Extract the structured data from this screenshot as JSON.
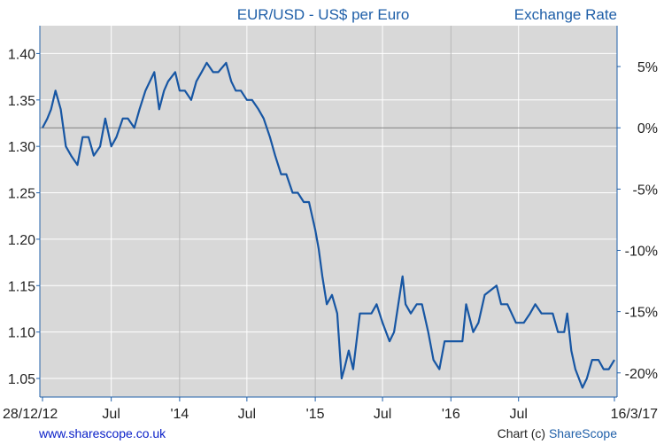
{
  "chart_data": {
    "type": "line",
    "title": "EUR/USD - US$ per Euro",
    "right_title": "Exchange Rate",
    "x_ticks": [
      "28/12/12",
      "Jul",
      "'14",
      "Jul",
      "'15",
      "Jul",
      "'16",
      "Jul",
      "16/3/17"
    ],
    "y_ticks_left": [
      "1.40",
      "1.35",
      "1.30",
      "1.25",
      "1.20",
      "1.15",
      "1.10",
      "1.05"
    ],
    "y_ticks_right": [
      "5%",
      "0%",
      "-5%",
      "-10%",
      "-15%",
      "-20%"
    ],
    "ylim": [
      1.03,
      1.43
    ],
    "baseline": 1.32,
    "grid": true,
    "colors": {
      "line": "#1756a3",
      "plot_bg": "#d8d8d8",
      "grid": "#ffffff",
      "baseline": "#808080",
      "axis": "#1f5fa8"
    },
    "series": [
      {
        "name": "",
        "x": [
          "2012-12-28",
          "2013-01-10",
          "2013-01-20",
          "2013-02-01",
          "2013-02-15",
          "2013-03-01",
          "2013-03-15",
          "2013-04-01",
          "2013-04-15",
          "2013-05-01",
          "2013-05-15",
          "2013-06-01",
          "2013-06-15",
          "2013-07-01",
          "2013-07-15",
          "2013-08-01",
          "2013-08-15",
          "2013-09-01",
          "2013-09-15",
          "2013-10-01",
          "2013-10-25",
          "2013-11-07",
          "2013-11-20",
          "2013-12-01",
          "2013-12-20",
          "2014-01-01",
          "2014-01-15",
          "2014-02-01",
          "2014-02-15",
          "2014-03-01",
          "2014-03-15",
          "2014-04-01",
          "2014-04-15",
          "2014-05-06",
          "2014-05-20",
          "2014-06-01",
          "2014-06-15",
          "2014-07-01",
          "2014-07-15",
          "2014-08-01",
          "2014-08-15",
          "2014-09-01",
          "2014-09-15",
          "2014-10-01",
          "2014-10-15",
          "2014-11-01",
          "2014-11-15",
          "2014-12-01",
          "2014-12-15",
          "2015-01-01",
          "2015-01-10",
          "2015-01-20",
          "2015-02-01",
          "2015-02-15",
          "2015-03-01",
          "2015-03-13",
          "2015-03-20",
          "2015-04-01",
          "2015-04-13",
          "2015-05-01",
          "2015-05-15",
          "2015-06-01",
          "2015-06-15",
          "2015-07-01",
          "2015-07-20",
          "2015-08-01",
          "2015-08-24",
          "2015-09-01",
          "2015-09-15",
          "2015-10-01",
          "2015-10-15",
          "2015-11-01",
          "2015-11-15",
          "2015-12-01",
          "2015-12-15",
          "2016-01-01",
          "2016-01-15",
          "2016-02-01",
          "2016-02-11",
          "2016-03-01",
          "2016-03-15",
          "2016-04-01",
          "2016-05-03",
          "2016-05-15",
          "2016-06-01",
          "2016-06-24",
          "2016-07-15",
          "2016-08-01",
          "2016-08-15",
          "2016-09-01",
          "2016-09-15",
          "2016-10-01",
          "2016-10-15",
          "2016-11-01",
          "2016-11-09",
          "2016-11-20",
          "2016-12-01",
          "2016-12-20",
          "2017-01-01",
          "2017-01-15",
          "2017-02-01",
          "2017-02-15",
          "2017-03-01",
          "2017-03-16"
        ],
        "values": [
          1.32,
          1.33,
          1.34,
          1.36,
          1.34,
          1.3,
          1.29,
          1.28,
          1.31,
          1.31,
          1.29,
          1.3,
          1.33,
          1.3,
          1.31,
          1.33,
          1.33,
          1.32,
          1.34,
          1.36,
          1.38,
          1.34,
          1.36,
          1.37,
          1.38,
          1.36,
          1.36,
          1.35,
          1.37,
          1.38,
          1.39,
          1.38,
          1.38,
          1.39,
          1.37,
          1.36,
          1.36,
          1.35,
          1.35,
          1.34,
          1.33,
          1.31,
          1.29,
          1.27,
          1.27,
          1.25,
          1.25,
          1.24,
          1.24,
          1.21,
          1.19,
          1.16,
          1.13,
          1.14,
          1.12,
          1.05,
          1.06,
          1.08,
          1.06,
          1.12,
          1.12,
          1.12,
          1.13,
          1.11,
          1.09,
          1.1,
          1.16,
          1.13,
          1.12,
          1.13,
          1.13,
          1.1,
          1.07,
          1.06,
          1.09,
          1.09,
          1.09,
          1.09,
          1.13,
          1.1,
          1.11,
          1.14,
          1.15,
          1.13,
          1.13,
          1.11,
          1.11,
          1.12,
          1.13,
          1.12,
          1.12,
          1.12,
          1.1,
          1.1,
          1.12,
          1.08,
          1.06,
          1.04,
          1.05,
          1.07,
          1.07,
          1.06,
          1.06,
          1.07
        ]
      }
    ]
  },
  "footer": {
    "site": "www.sharescope.co.uk",
    "copyright_prefix": "Chart (c) ",
    "brand": "ShareScope"
  }
}
